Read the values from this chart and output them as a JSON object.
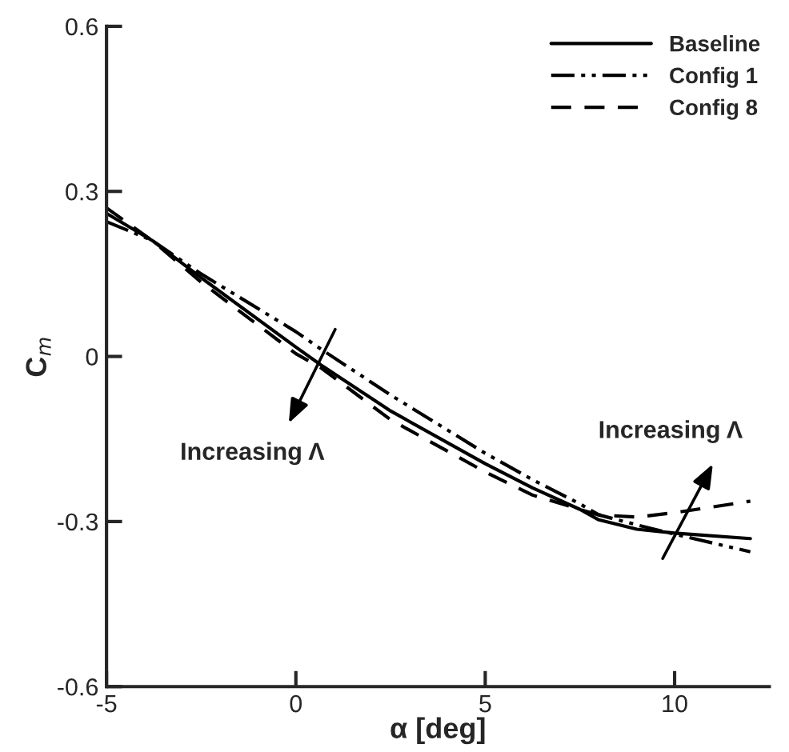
{
  "chart_data": {
    "type": "line",
    "xlabel": "α [deg]",
    "ylabel": "C$_{m}$",
    "xlim": [
      -5,
      12.5
    ],
    "ylim": [
      -0.6,
      0.6
    ],
    "xticks": [
      -5,
      0,
      5,
      10
    ],
    "yticks": [
      -0.6,
      -0.3,
      0,
      0.3,
      0.6
    ],
    "grid": false,
    "legend": "top right",
    "series": [
      {
        "name": "Baseline",
        "color": "#000000",
        "line_style": "solid",
        "x": [
          -5,
          -3.8,
          -2.5,
          0,
          0.67,
          2.5,
          5,
          6.25,
          7.5,
          8,
          9,
          10,
          12
        ],
        "values": [
          0.26,
          0.211,
          0.143,
          0.017,
          -0.016,
          -0.099,
          -0.195,
          -0.239,
          -0.278,
          -0.297,
          -0.314,
          -0.321,
          -0.331
        ]
      },
      {
        "name": "Config 1",
        "color": "#000000",
        "line_style": "dashdotdot",
        "x": [
          -5,
          -3.8,
          -2.5,
          0,
          0.67,
          2.5,
          5,
          6.25,
          7.5,
          8,
          9,
          10,
          12
        ],
        "values": [
          0.245,
          0.211,
          0.15,
          0.045,
          0.013,
          -0.07,
          -0.176,
          -0.224,
          -0.268,
          -0.288,
          -0.306,
          -0.323,
          -0.355
        ]
      },
      {
        "name": "Config 8",
        "color": "#000000",
        "line_style": "dashed",
        "x": [
          -5,
          -3.8,
          -2.5,
          0,
          0.67,
          2.5,
          5,
          6.25,
          7.5,
          8,
          9,
          10,
          12
        ],
        "values": [
          0.27,
          0.211,
          0.135,
          0.005,
          -0.021,
          -0.115,
          -0.21,
          -0.252,
          -0.278,
          -0.288,
          -0.292,
          -0.284,
          -0.263
        ]
      }
    ],
    "annotations": [
      "Increasing Λ",
      "Increasing Λ"
    ]
  }
}
